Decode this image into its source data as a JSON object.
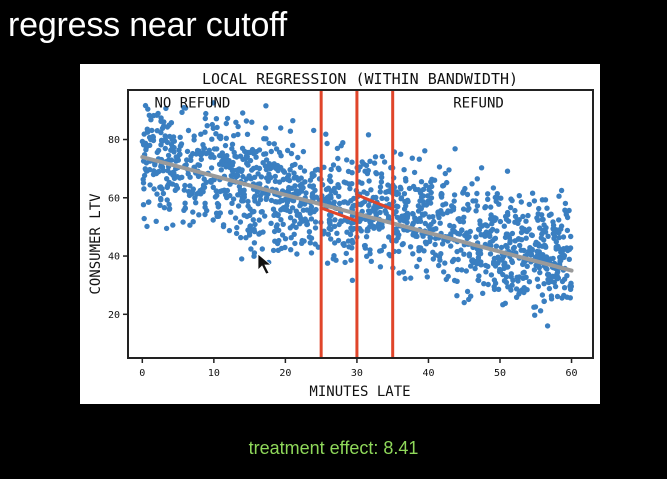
{
  "slide": {
    "title": "regress near cutoff",
    "treatment_effect_text": "treatment effect: 8.41"
  },
  "chart_data": {
    "type": "scatter",
    "title": "LOCAL REGRESSION (WITHIN BANDWIDTH)",
    "xlabel": "MINUTES LATE",
    "ylabel": "CONSUMER LTV",
    "xlim": [
      -2,
      63
    ],
    "ylim": [
      5,
      97
    ],
    "xticks": [
      0,
      10,
      20,
      30,
      40,
      50,
      60
    ],
    "yticks": [
      20,
      40,
      60,
      80
    ],
    "grid": false,
    "region_labels": [
      {
        "text": "NO REFUND",
        "x": 7,
        "y": 91
      },
      {
        "text": "REFUND",
        "x": 47,
        "y": 91
      }
    ],
    "cutoff": 30,
    "bandwidth": [
      25,
      35
    ],
    "point_color": "#3a7fc1",
    "global_fit": {
      "color": "#9a9a9a",
      "from": [
        0,
        74
      ],
      "to": [
        60,
        35
      ]
    },
    "local_fit_left": {
      "color": "#e0452a",
      "from": [
        25,
        56.5
      ],
      "to": [
        30,
        52
      ]
    },
    "local_fit_right": {
      "color": "#e0452a",
      "from": [
        30,
        61
      ],
      "to": [
        35,
        56
      ]
    },
    "boundary_color": "#e0452a",
    "treatment_effect": 8.41
  }
}
